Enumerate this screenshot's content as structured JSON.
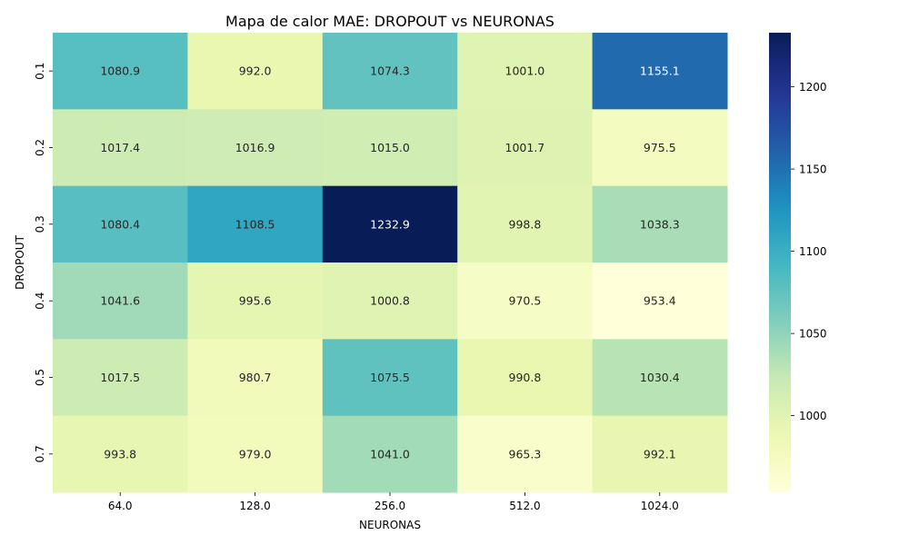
{
  "chart_data": {
    "type": "heatmap",
    "title": "Mapa de calor MAE: DROPOUT vs NEURONAS",
    "xlabel": "NEURONAS",
    "ylabel": "DROPOUT",
    "x_categories": [
      "64.0",
      "128.0",
      "256.0",
      "512.0",
      "1024.0"
    ],
    "y_categories": [
      "0.1",
      "0.2",
      "0.3",
      "0.4",
      "0.5",
      "0.7"
    ],
    "values": [
      [
        1080.9,
        992.0,
        1074.3,
        1001.0,
        1155.1
      ],
      [
        1017.4,
        1016.9,
        1015.0,
        1001.7,
        975.5
      ],
      [
        1080.4,
        1108.5,
        1232.9,
        998.8,
        1038.3
      ],
      [
        1041.6,
        995.6,
        1000.8,
        970.5,
        953.4
      ],
      [
        1017.5,
        980.7,
        1075.5,
        990.8,
        1030.4
      ],
      [
        993.8,
        979.0,
        1041.0,
        965.3,
        992.1
      ]
    ],
    "colormap": "YlGnBu",
    "colorbar": {
      "range": [
        953.4,
        1232.9
      ],
      "ticks": [
        1000,
        1050,
        1100,
        1150,
        1200
      ]
    },
    "grid": false
  }
}
